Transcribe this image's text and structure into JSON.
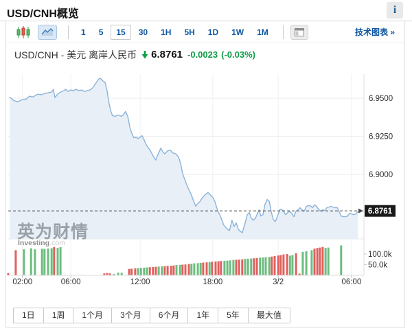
{
  "header": {
    "title": "USD/CNH概览",
    "info_button": "i"
  },
  "toolbar": {
    "chart_type_buttons": [
      {
        "name": "candlestick",
        "selected": false
      },
      {
        "name": "line-area",
        "selected": true
      }
    ],
    "intervals": [
      "1",
      "5",
      "15",
      "30",
      "1H",
      "5H",
      "1D",
      "1W",
      "1M"
    ],
    "selected_interval": "15",
    "tech_chart_label": "技术图表 »"
  },
  "quote": {
    "name": "USD/CNH - 美元 离岸人民币",
    "price": "6.8761",
    "change": "-0.0023",
    "change_percent": "(-0.03%)",
    "direction": "down",
    "change_color": "#0f9d49"
  },
  "watermark": {
    "cn": "英为财情",
    "en_bold": "Investing",
    "en_light": ".com"
  },
  "range_buttons": [
    "1日",
    "1周",
    "1个月",
    "3个月",
    "6个月",
    "1年",
    "5年",
    "最大值"
  ],
  "chart_data": {
    "type": "line",
    "subtype": "area-line with volume bars",
    "title": "USD/CNH 15-minute intraday price with volume",
    "price_axis": {
      "max": 6.9645,
      "min": 6.8577,
      "ticks": [
        {
          "value": 6.95,
          "label": "6.9500"
        },
        {
          "value": 6.925,
          "label": "6.9250"
        },
        {
          "value": 6.9,
          "label": "6.9000"
        }
      ]
    },
    "current_price": {
      "value": 6.8761,
      "label": "6.8761"
    },
    "x_axis": {
      "ticks": [
        {
          "f": 0.04,
          "label": "02:00"
        },
        {
          "f": 0.176,
          "label": "06:00"
        },
        {
          "f": 0.371,
          "label": "12:00"
        },
        {
          "f": 0.575,
          "label": "18:00"
        },
        {
          "f": 0.759,
          "label": "3/2"
        },
        {
          "f": 0.965,
          "label": "06:00"
        }
      ]
    },
    "volume_axis": {
      "max_k": 161,
      "ticks": [
        {
          "value": 100,
          "label": "100.0k"
        },
        {
          "value": 50,
          "label": "50.0k"
        }
      ]
    },
    "price_series": [
      [
        0.004,
        6.9509
      ],
      [
        0.015,
        6.9486
      ],
      [
        0.027,
        6.9477
      ],
      [
        0.039,
        6.9491
      ],
      [
        0.05,
        6.9495
      ],
      [
        0.06,
        6.9514
      ],
      [
        0.069,
        6.9509
      ],
      [
        0.083,
        6.9527
      ],
      [
        0.093,
        6.9523
      ],
      [
        0.102,
        6.9532
      ],
      [
        0.112,
        6.9536
      ],
      [
        0.122,
        6.9541
      ],
      [
        0.127,
        6.9559
      ],
      [
        0.131,
        6.9505
      ],
      [
        0.139,
        6.9527
      ],
      [
        0.147,
        6.9541
      ],
      [
        0.156,
        6.955
      ],
      [
        0.162,
        6.9559
      ],
      [
        0.168,
        6.9545
      ],
      [
        0.176,
        6.9555
      ],
      [
        0.183,
        6.955
      ],
      [
        0.191,
        6.9559
      ],
      [
        0.199,
        6.955
      ],
      [
        0.207,
        6.9555
      ],
      [
        0.214,
        6.9545
      ],
      [
        0.222,
        6.955
      ],
      [
        0.23,
        6.9555
      ],
      [
        0.237,
        6.9568
      ],
      [
        0.245,
        6.9595
      ],
      [
        0.253,
        6.9623
      ],
      [
        0.259,
        6.9632
      ],
      [
        0.266,
        6.9614
      ],
      [
        0.272,
        6.9605
      ],
      [
        0.278,
        6.955
      ],
      [
        0.282,
        6.9482
      ],
      [
        0.288,
        6.9418
      ],
      [
        0.293,
        6.9386
      ],
      [
        0.301,
        6.9382
      ],
      [
        0.309,
        6.9391
      ],
      [
        0.317,
        6.9382
      ],
      [
        0.324,
        6.9391
      ],
      [
        0.33,
        6.9414
      ],
      [
        0.336,
        6.9382
      ],
      [
        0.342,
        6.9309
      ],
      [
        0.347,
        6.9273
      ],
      [
        0.353,
        6.9241
      ],
      [
        0.359,
        6.9245
      ],
      [
        0.365,
        6.9236
      ],
      [
        0.371,
        6.9245
      ],
      [
        0.376,
        6.9255
      ],
      [
        0.382,
        6.9227
      ],
      [
        0.388,
        6.9195
      ],
      [
        0.394,
        6.9173
      ],
      [
        0.4,
        6.9155
      ],
      [
        0.407,
        6.9123
      ],
      [
        0.415,
        6.9095
      ],
      [
        0.421,
        6.9132
      ],
      [
        0.429,
        6.9173
      ],
      [
        0.434,
        6.915
      ],
      [
        0.44,
        6.9136
      ],
      [
        0.448,
        6.9155
      ],
      [
        0.456,
        6.9159
      ],
      [
        0.463,
        6.9141
      ],
      [
        0.471,
        6.9136
      ],
      [
        0.479,
        6.9114
      ],
      [
        0.485,
        6.9068
      ],
      [
        0.49,
        6.9009
      ],
      [
        0.498,
        6.8955
      ],
      [
        0.506,
        6.8909
      ],
      [
        0.513,
        6.8877
      ],
      [
        0.521,
        6.8827
      ],
      [
        0.527,
        6.8791
      ],
      [
        0.533,
        6.8809
      ],
      [
        0.539,
        6.8823
      ],
      [
        0.544,
        6.8841
      ],
      [
        0.552,
        6.8864
      ],
      [
        0.562,
        6.8882
      ],
      [
        0.569,
        6.8864
      ],
      [
        0.575,
        6.885
      ],
      [
        0.581,
        6.8823
      ],
      [
        0.589,
        6.8759
      ],
      [
        0.595,
        6.8736
      ],
      [
        0.6,
        6.8705
      ],
      [
        0.606,
        6.8668
      ],
      [
        0.614,
        6.8645
      ],
      [
        0.622,
        6.8632
      ],
      [
        0.629,
        6.87
      ],
      [
        0.635,
        6.8659
      ],
      [
        0.641,
        6.8682
      ],
      [
        0.647,
        6.8641
      ],
      [
        0.652,
        6.8627
      ],
      [
        0.658,
        6.8618
      ],
      [
        0.666,
        6.8682
      ],
      [
        0.672,
        6.8736
      ],
      [
        0.678,
        6.875
      ],
      [
        0.683,
        6.8714
      ],
      [
        0.689,
        6.87
      ],
      [
        0.695,
        6.8714
      ],
      [
        0.701,
        6.8745
      ],
      [
        0.705,
        6.8768
      ],
      [
        0.71,
        6.8727
      ],
      [
        0.716,
        6.8736
      ],
      [
        0.722,
        6.8805
      ],
      [
        0.728,
        6.8836
      ],
      [
        0.734,
        6.8823
      ],
      [
        0.739,
        6.8759
      ],
      [
        0.745,
        6.8705
      ],
      [
        0.751,
        6.8691
      ],
      [
        0.757,
        6.8727
      ],
      [
        0.763,
        6.8768
      ],
      [
        0.768,
        6.8773
      ],
      [
        0.774,
        6.8759
      ],
      [
        0.78,
        6.8736
      ],
      [
        0.786,
        6.875
      ],
      [
        0.791,
        6.8759
      ],
      [
        0.797,
        6.8745
      ],
      [
        0.803,
        6.8723
      ],
      [
        0.809,
        6.8759
      ],
      [
        0.815,
        6.8768
      ],
      [
        0.82,
        6.8782
      ],
      [
        0.826,
        6.8768
      ],
      [
        0.832,
        6.8759
      ],
      [
        0.838,
        6.8791
      ],
      [
        0.843,
        6.8795
      ],
      [
        0.849,
        6.8795
      ],
      [
        0.855,
        6.8782
      ],
      [
        0.861,
        6.88
      ],
      [
        0.867,
        6.8791
      ],
      [
        0.872,
        6.8773
      ],
      [
        0.878,
        6.8759
      ],
      [
        0.884,
        6.8768
      ],
      [
        0.89,
        6.8764
      ],
      [
        0.896,
        6.8782
      ],
      [
        0.901,
        6.8786
      ],
      [
        0.907,
        6.8791
      ],
      [
        0.913,
        6.8786
      ],
      [
        0.919,
        6.8782
      ],
      [
        0.925,
        6.8782
      ],
      [
        0.93,
        6.8759
      ],
      [
        0.936,
        6.8727
      ],
      [
        0.942,
        6.8723
      ],
      [
        0.948,
        6.8723
      ],
      [
        0.954,
        6.8727
      ],
      [
        0.959,
        6.8745
      ],
      [
        0.965,
        6.8741
      ],
      [
        0.971,
        6.8736
      ],
      [
        0.977,
        6.8741
      ],
      [
        0.983,
        6.8757
      ]
    ],
    "volume_series": [
      [
        0.0,
        10,
        "r"
      ],
      [
        0.021,
        118,
        "r"
      ],
      [
        0.044,
        122,
        "g"
      ],
      [
        0.064,
        127,
        "g"
      ],
      [
        0.075,
        122,
        "g"
      ],
      [
        0.095,
        125,
        "g"
      ],
      [
        0.102,
        124,
        "g"
      ],
      [
        0.112,
        126,
        "g"
      ],
      [
        0.122,
        127,
        "g"
      ],
      [
        0.129,
        133,
        "r"
      ],
      [
        0.139,
        128,
        "g"
      ],
      [
        0.147,
        132,
        "g"
      ],
      [
        0.27,
        9,
        "r"
      ],
      [
        0.278,
        11,
        "r"
      ],
      [
        0.286,
        9,
        "r"
      ],
      [
        0.297,
        6,
        "g"
      ],
      [
        0.309,
        13,
        "g"
      ],
      [
        0.319,
        12,
        "g"
      ],
      [
        0.34,
        30,
        "r"
      ],
      [
        0.347,
        31,
        "r"
      ],
      [
        0.357,
        33,
        "r"
      ],
      [
        0.365,
        34,
        "g"
      ],
      [
        0.373,
        35,
        "g"
      ],
      [
        0.382,
        36,
        "g"
      ],
      [
        0.39,
        37,
        "g"
      ],
      [
        0.398,
        38,
        "r"
      ],
      [
        0.407,
        39,
        "r"
      ],
      [
        0.415,
        40,
        "r"
      ],
      [
        0.423,
        41,
        "g"
      ],
      [
        0.432,
        42,
        "g"
      ],
      [
        0.44,
        43,
        "r"
      ],
      [
        0.448,
        44,
        "r"
      ],
      [
        0.458,
        45,
        "r"
      ],
      [
        0.465,
        46,
        "r"
      ],
      [
        0.473,
        48,
        "g"
      ],
      [
        0.483,
        49,
        "g"
      ],
      [
        0.49,
        50,
        "r"
      ],
      [
        0.498,
        51,
        "r"
      ],
      [
        0.508,
        53,
        "r"
      ],
      [
        0.515,
        54,
        "g"
      ],
      [
        0.523,
        56,
        "g"
      ],
      [
        0.533,
        57,
        "g"
      ],
      [
        0.541,
        58,
        "g"
      ],
      [
        0.548,
        60,
        "r"
      ],
      [
        0.558,
        61,
        "r"
      ],
      [
        0.566,
        62,
        "g"
      ],
      [
        0.573,
        64,
        "r"
      ],
      [
        0.583,
        65,
        "r"
      ],
      [
        0.591,
        66,
        "r"
      ],
      [
        0.598,
        67,
        "r"
      ],
      [
        0.608,
        68,
        "g"
      ],
      [
        0.616,
        69,
        "g"
      ],
      [
        0.624,
        70,
        "g"
      ],
      [
        0.633,
        72,
        "g"
      ],
      [
        0.641,
        73,
        "r"
      ],
      [
        0.649,
        74,
        "r"
      ],
      [
        0.658,
        75,
        "r"
      ],
      [
        0.666,
        77,
        "g"
      ],
      [
        0.674,
        78,
        "g"
      ],
      [
        0.683,
        79,
        "g"
      ],
      [
        0.691,
        80,
        "r"
      ],
      [
        0.699,
        81,
        "r"
      ],
      [
        0.708,
        83,
        "g"
      ],
      [
        0.716,
        84,
        "g"
      ],
      [
        0.724,
        85,
        "g"
      ],
      [
        0.734,
        86,
        "g"
      ],
      [
        0.741,
        88,
        "r"
      ],
      [
        0.749,
        90,
        "r"
      ],
      [
        0.759,
        93,
        "r"
      ],
      [
        0.766,
        95,
        "r"
      ],
      [
        0.774,
        98,
        "r"
      ],
      [
        0.784,
        100,
        "r"
      ],
      [
        0.792,
        92,
        "g"
      ],
      [
        0.799,
        95,
        "g"
      ],
      [
        0.809,
        103,
        "r"
      ],
      [
        0.819,
        8,
        "r"
      ],
      [
        0.828,
        110,
        "g"
      ],
      [
        0.838,
        113,
        "g"
      ],
      [
        0.853,
        118,
        "g"
      ],
      [
        0.861,
        125,
        "r"
      ],
      [
        0.869,
        128,
        "r"
      ],
      [
        0.876,
        130,
        "r"
      ],
      [
        0.884,
        133,
        "r"
      ],
      [
        0.892,
        128,
        "g"
      ],
      [
        0.9,
        130,
        "g"
      ],
      [
        0.936,
        140,
        "g"
      ]
    ],
    "colors": {
      "line": "#8cb3d9",
      "fill": "#e8eff7",
      "vol_up": "#6cbd7e",
      "vol_down": "#e0605e",
      "current_line": "#4a4a4a",
      "badge_bg": "#191919",
      "badge_text": "#ffffff",
      "grid": "#f0f1f4",
      "axis": "#dcdcdc",
      "label": "#2e2e2e"
    }
  }
}
